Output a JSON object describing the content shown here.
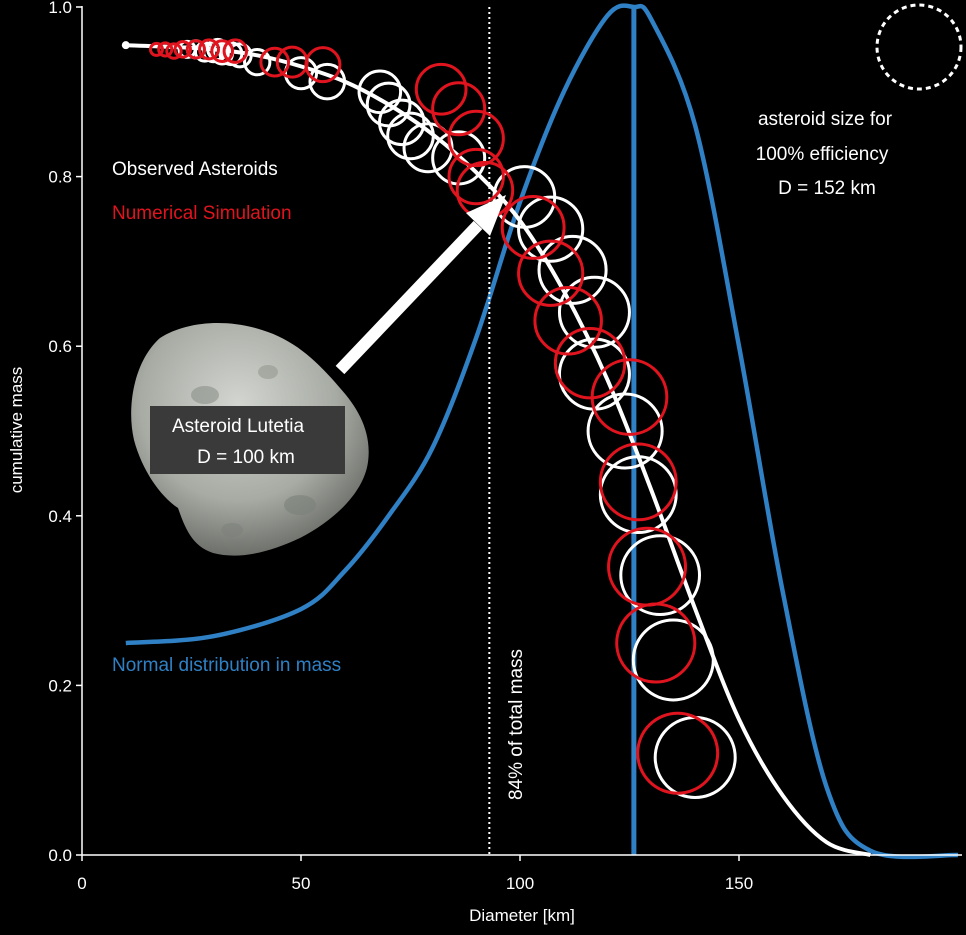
{
  "chart_data": {
    "type": "line",
    "xlabel": "Diameter [km]",
    "ylabel": "cumulative mass",
    "xlim": [
      0,
      200
    ],
    "ylim": [
      0,
      1.0
    ],
    "x_ticks": [
      "0",
      "50",
      "100",
      "150"
    ],
    "y_ticks": [
      "0.0",
      "0.2",
      "0.4",
      "0.6",
      "0.8",
      "1.0"
    ],
    "grid": false,
    "legend": [
      "Observed Asteroids",
      "Numerical Simulation"
    ],
    "colors": {
      "observed": "#ffffff",
      "simulation": "#e0141e",
      "normal": "#2f80c4",
      "fit": "#ffffff"
    },
    "series": [
      {
        "name": "Observed Asteroids",
        "marker": "open-circle",
        "x": [
          24,
          26,
          28,
          30,
          31,
          32,
          34,
          36,
          40,
          50,
          56,
          68,
          70,
          73,
          75,
          79,
          86,
          101,
          107,
          112,
          117,
          117,
          124,
          127,
          132,
          135,
          140
        ],
        "y": [
          0.95,
          0.95,
          0.947,
          0.947,
          0.95,
          0.945,
          0.945,
          0.943,
          0.935,
          0.922,
          0.912,
          0.9,
          0.885,
          0.864,
          0.848,
          0.834,
          0.822,
          0.776,
          0.738,
          0.69,
          0.64,
          0.567,
          0.5,
          0.425,
          0.33,
          0.23,
          0.115
        ]
      },
      {
        "name": "Numerical Simulation",
        "marker": "open-circle",
        "x": [
          17,
          19,
          21,
          23,
          26,
          29,
          32,
          35,
          44,
          48,
          55,
          82,
          86,
          90,
          90,
          92,
          103,
          107,
          111,
          116,
          125,
          127,
          129,
          131,
          136
        ],
        "y": [
          0.95,
          0.95,
          0.948,
          0.95,
          0.95,
          0.95,
          0.948,
          0.948,
          0.935,
          0.935,
          0.932,
          0.903,
          0.88,
          0.845,
          0.8,
          0.784,
          0.74,
          0.686,
          0.63,
          0.58,
          0.54,
          0.44,
          0.34,
          0.25,
          0.12
        ]
      },
      {
        "name": "cumulative fit",
        "type": "curve",
        "x": [
          10,
          20,
          30,
          40,
          50,
          60,
          70,
          80,
          90,
          100,
          110,
          120,
          130,
          140,
          150,
          160,
          170,
          180
        ],
        "y": [
          0.955,
          0.953,
          0.95,
          0.943,
          0.93,
          0.912,
          0.885,
          0.85,
          0.805,
          0.748,
          0.665,
          0.56,
          0.43,
          0.29,
          0.16,
          0.07,
          0.015,
          0.0
        ]
      },
      {
        "name": "Normal distribution in mass",
        "type": "curve",
        "mean": 126,
        "peak": 1.0,
        "x": [
          10,
          30,
          50,
          60,
          70,
          80,
          90,
          100,
          110,
          120,
          126,
          130,
          140,
          150,
          160,
          170,
          180,
          200
        ],
        "y": [
          0.25,
          0.258,
          0.29,
          0.335,
          0.4,
          0.48,
          0.61,
          0.77,
          0.9,
          0.99,
          1.0,
          0.985,
          0.86,
          0.6,
          0.31,
          0.08,
          0.005,
          0.0
        ]
      }
    ],
    "vlines": [
      {
        "x": 93,
        "style": "dotted",
        "label": "84% of total mass"
      },
      {
        "x": 126,
        "style": "solid",
        "color": "#2f80c4"
      }
    ],
    "annotations": {
      "observed": "Observed Asteroids",
      "simulation": "Numerical Simulation",
      "normal": "Normal distribution in mass",
      "efficiency_line1": "asteroid size for",
      "efficiency_line2": "100% efficiency",
      "efficiency_line3": "D = 152 km",
      "lutetia_line1": "Asteroid Lutetia",
      "lutetia_line2": "D = 100 km"
    }
  }
}
